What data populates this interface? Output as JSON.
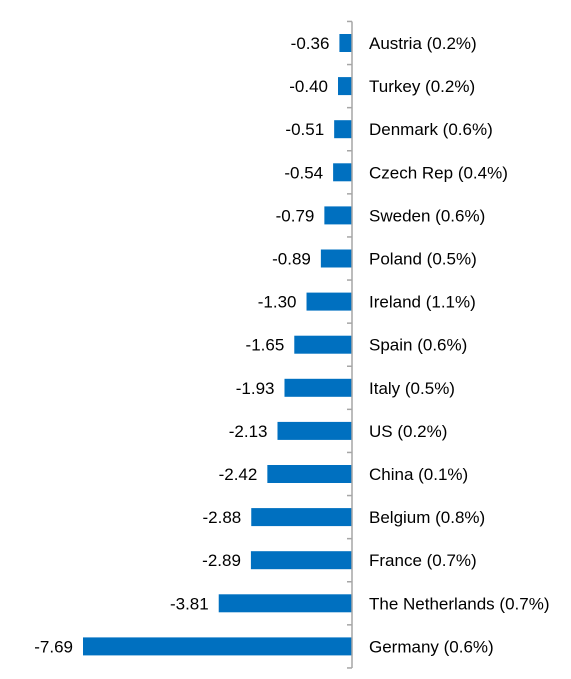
{
  "chart_data": {
    "type": "bar",
    "orientation": "horizontal",
    "categories": [
      "Austria (0.2%)",
      "Turkey (0.2%)",
      "Denmark (0.6%)",
      "Czech Rep (0.4%)",
      "Sweden (0.6%)",
      "Poland (0.5%)",
      "Ireland (1.1%)",
      "Spain (0.6%)",
      "Italy (0.5%)",
      "US (0.2%)",
      "China (0.1%)",
      "Belgium (0.8%)",
      "France (0.7%)",
      "The Netherlands (0.7%)",
      "Germany (0.6%)"
    ],
    "values": [
      -0.36,
      -0.4,
      -0.51,
      -0.54,
      -0.79,
      -0.89,
      -1.3,
      -1.65,
      -1.93,
      -2.13,
      -2.42,
      -2.88,
      -2.89,
      -3.81,
      -7.69
    ],
    "value_labels": [
      "-0.36",
      "-0.40",
      "-0.51",
      "-0.54",
      "-0.79",
      "-0.89",
      "-1.30",
      "-1.65",
      "-1.93",
      "-2.13",
      "-2.42",
      "-2.88",
      "-2.89",
      "-3.81",
      "-7.69"
    ],
    "title": "",
    "xlabel": "",
    "ylabel": "",
    "xlim": [
      -7.69,
      0
    ],
    "grid": false,
    "bar_color": "#0070C0",
    "axis_color": "#A6A6A6"
  }
}
